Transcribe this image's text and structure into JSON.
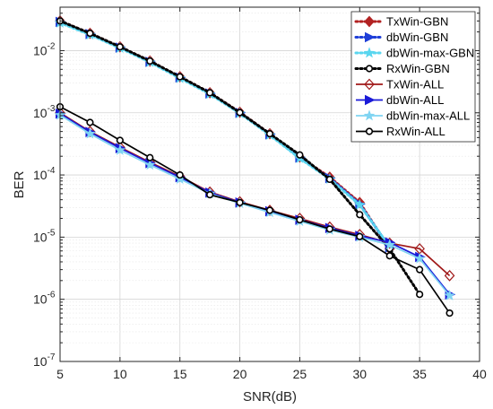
{
  "chart_data": {
    "type": "line",
    "title": "",
    "xlabel": "SNR(dB)",
    "ylabel": "BER",
    "x_scale": "linear",
    "y_scale": "log",
    "xlim": [
      5,
      40
    ],
    "ylim": [
      1e-07,
      0.05
    ],
    "xticks": [
      5,
      10,
      15,
      20,
      25,
      30,
      35,
      40
    ],
    "ytick_values": [
      1e-07,
      1e-06,
      1e-05,
      0.0001,
      0.001,
      0.01
    ],
    "yticks": [
      {
        "base": "10",
        "exp": "-7"
      },
      {
        "base": "10",
        "exp": "-6"
      },
      {
        "base": "10",
        "exp": "-5"
      },
      {
        "base": "10",
        "exp": "-4"
      },
      {
        "base": "10",
        "exp": "-3"
      },
      {
        "base": "10",
        "exp": "-2"
      }
    ],
    "grid": true,
    "minor_grid": true,
    "legend_position": "top-right",
    "series": [
      {
        "name": "TxWin-GBN",
        "color": "#b22222",
        "dash": "dotted",
        "marker": "diamond",
        "x": [
          5,
          7.5,
          10,
          12.5,
          15,
          17.5,
          20,
          22.5,
          25,
          27.5,
          30,
          32.5
        ],
        "y": [
          0.03,
          0.019,
          0.0115,
          0.0068,
          0.0038,
          0.0021,
          0.00102,
          0.00046,
          0.000195,
          9.2e-05,
          3.6e-05,
          6.5e-06
        ]
      },
      {
        "name": "dbWin-GBN",
        "color": "#1f3fd8",
        "dash": "dotted",
        "marker": "triangle-right",
        "x": [
          5,
          7.5,
          10,
          12.5,
          15,
          17.5,
          20,
          22.5,
          25,
          27.5,
          30,
          32.5
        ],
        "y": [
          0.029,
          0.0185,
          0.0112,
          0.0066,
          0.0037,
          0.00205,
          0.001,
          0.00045,
          0.00019,
          8.9e-05,
          3.4e-05,
          6.8e-06
        ]
      },
      {
        "name": "dbWin-max-GBN",
        "color": "#5ad6ef",
        "dash": "dotted",
        "marker": "star",
        "x": [
          5,
          7.5,
          10,
          12.5,
          15,
          17.5,
          20,
          22.5,
          25,
          27.5,
          30,
          32.5
        ],
        "y": [
          0.028,
          0.018,
          0.011,
          0.0065,
          0.0036,
          0.002,
          0.00098,
          0.00044,
          0.000185,
          8.6e-05,
          3.3e-05,
          7e-06
        ]
      },
      {
        "name": "RxWin-GBN",
        "color": "#000000",
        "dash": "dotted",
        "marker": "circle",
        "x": [
          5,
          7.5,
          10,
          12.5,
          15,
          17.5,
          20,
          22.5,
          25,
          27.5,
          30,
          32.5,
          35
        ],
        "y": [
          0.03,
          0.019,
          0.0115,
          0.0068,
          0.0038,
          0.0021,
          0.00101,
          0.00046,
          0.00021,
          8.5e-05,
          2.3e-05,
          6.5e-06,
          1.2e-06
        ]
      },
      {
        "name": "TxWin-ALL",
        "color": "#a01818",
        "dash": "solid",
        "marker": "diamond",
        "x": [
          5,
          7.5,
          10,
          12.5,
          15,
          17.5,
          20,
          22.5,
          25,
          27.5,
          30,
          32.5,
          35,
          37.5
        ],
        "y": [
          0.001,
          0.0005,
          0.00028,
          0.00016,
          9.5e-05,
          5.3e-05,
          3.7e-05,
          2.7e-05,
          2e-05,
          1.45e-05,
          1.1e-05,
          8e-06,
          6.5e-06,
          2.4e-06
        ]
      },
      {
        "name": "dbWin-ALL",
        "color": "#1a1ad8",
        "dash": "solid",
        "marker": "triangle-right",
        "x": [
          5,
          7.5,
          10,
          12.5,
          15,
          17.5,
          20,
          22.5,
          25,
          27.5,
          30,
          32.5,
          35,
          37.5
        ],
        "y": [
          0.00097,
          0.00049,
          0.00027,
          0.000155,
          9.2e-05,
          5.2e-05,
          3.6e-05,
          2.6e-05,
          1.9e-05,
          1.4e-05,
          1.05e-05,
          8.2e-06,
          4.8e-06,
          1.2e-06
        ]
      },
      {
        "name": "dbWin-max-ALL",
        "color": "#7fd4f2",
        "dash": "solid",
        "marker": "star",
        "x": [
          5,
          7.5,
          10,
          12.5,
          15,
          17.5,
          20,
          22.5,
          25,
          27.5,
          30,
          32.5,
          35,
          37.5
        ],
        "y": [
          0.00092,
          0.00046,
          0.00025,
          0.000145,
          8.6e-05,
          5e-05,
          3.5e-05,
          2.5e-05,
          1.8e-05,
          1.3e-05,
          1e-05,
          7.5e-06,
          4.5e-06,
          1.15e-06
        ]
      },
      {
        "name": "RxWin-ALL",
        "color": "#000000",
        "dash": "solid",
        "marker": "circle",
        "x": [
          5,
          7.5,
          10,
          12.5,
          15,
          17.5,
          20,
          22.5,
          25,
          27.5,
          30,
          32.5,
          35,
          37.5
        ],
        "y": [
          0.00125,
          0.0007,
          0.00036,
          0.00019,
          0.0001,
          4.8e-05,
          3.6e-05,
          2.7e-05,
          1.9e-05,
          1.35e-05,
          1.02e-05,
          5e-06,
          3e-06,
          6e-07
        ]
      }
    ]
  }
}
